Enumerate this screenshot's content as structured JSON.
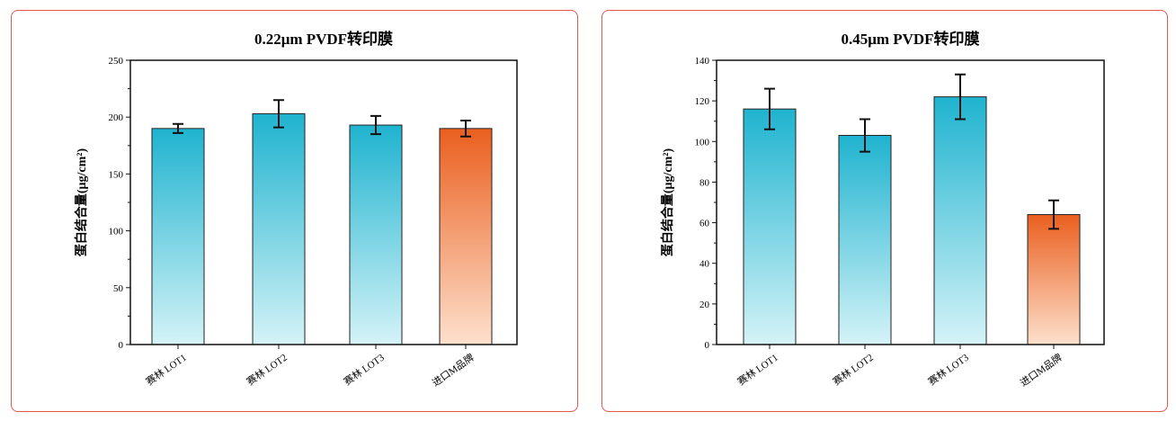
{
  "colors": {
    "blue_top": "#1fb3cf",
    "blue_bottom": "#d4f3f7",
    "orange_top": "#ea5f1f",
    "orange_bottom": "#fde0cc",
    "frame": "#e8574a"
  },
  "chart_data": [
    {
      "type": "bar",
      "title": "0.22μm PVDF转印膜",
      "ylabel": "蛋白结合量(μg/cm²)",
      "xlabel": "",
      "categories": [
        "赛林 LOT1",
        "赛林 LOT2",
        "赛林 LOT3",
        "进口M品牌"
      ],
      "values": [
        190,
        203,
        193,
        190
      ],
      "errors": [
        4,
        12,
        8,
        7
      ],
      "ylim": [
        0,
        250
      ],
      "yticks": [
        0,
        50,
        100,
        150,
        200,
        250
      ],
      "grid": false
    },
    {
      "type": "bar",
      "title": "0.45μm PVDF转印膜",
      "ylabel": "蛋白结合量(μg/cm²)",
      "xlabel": "",
      "categories": [
        "赛林 LOT1",
        "赛林 LOT2",
        "赛林 LOT3",
        "进口M品牌"
      ],
      "values": [
        116,
        103,
        122,
        64
      ],
      "errors": [
        10,
        8,
        11,
        7
      ],
      "ylim": [
        0,
        140
      ],
      "yticks": [
        0,
        20,
        40,
        60,
        80,
        100,
        120,
        140
      ],
      "grid": false
    }
  ]
}
